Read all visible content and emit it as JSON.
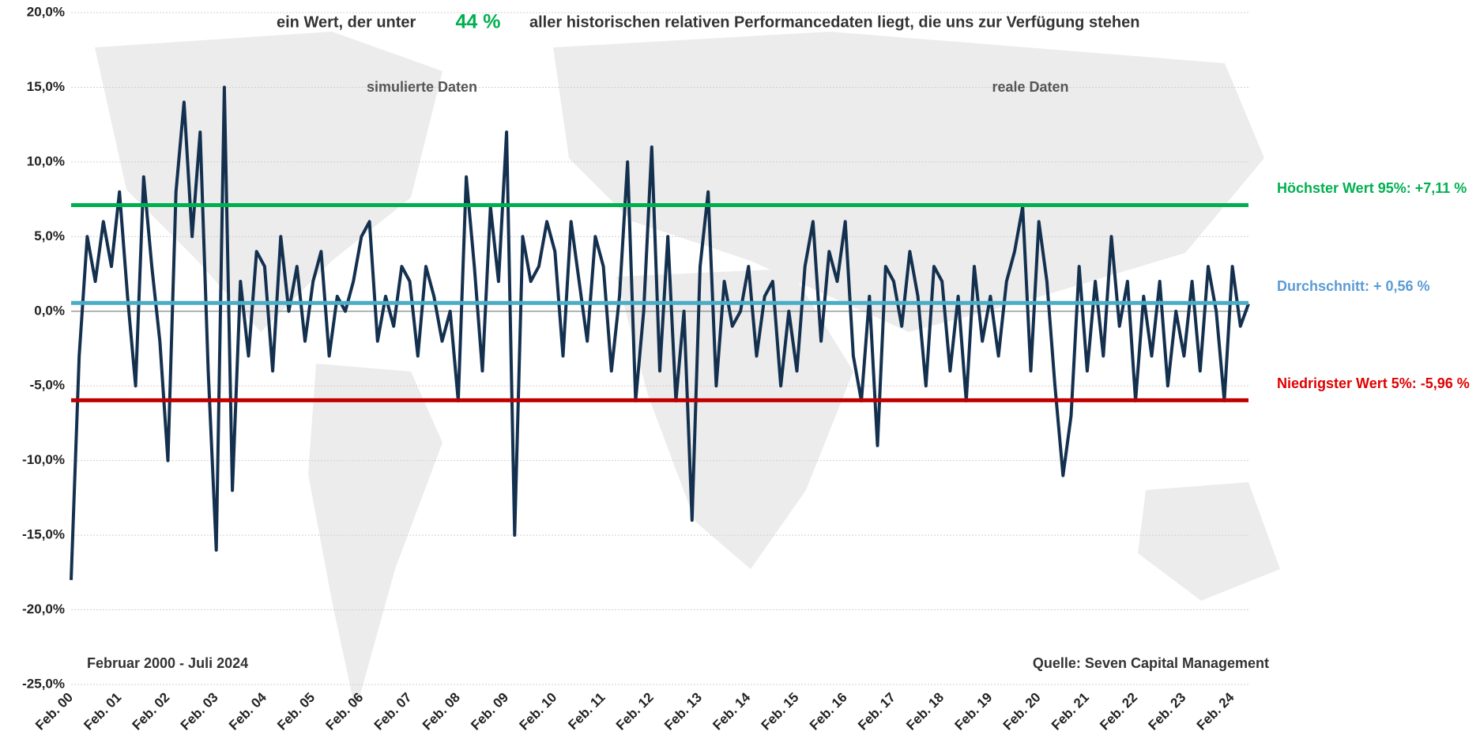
{
  "chart_data": {
    "type": "line",
    "title_parts": [
      "ein Wert, der unter",
      "44 %",
      "aller historischen relativen Performancedaten liegt, die uns zur Verfügung stehen"
    ],
    "annotations": [
      "simulierte Daten",
      "reale Daten",
      "Februar 2000 - Juli 2024",
      "Quelle: Seven Capital Management"
    ],
    "categories": [
      "Feb. 00",
      null,
      null,
      null,
      null,
      null,
      "Feb. 01",
      null,
      null,
      null,
      null,
      null,
      "Feb. 02",
      null,
      null,
      null,
      null,
      null,
      "Feb. 03",
      null,
      null,
      null,
      null,
      null,
      "Feb. 04",
      null,
      null,
      null,
      null,
      null,
      "Feb. 05",
      null,
      null,
      null,
      null,
      null,
      "Feb. 06",
      null,
      null,
      null,
      null,
      null,
      "Feb. 07",
      null,
      null,
      null,
      null,
      null,
      "Feb. 08",
      null,
      null,
      null,
      null,
      null,
      "Feb. 09",
      null,
      null,
      null,
      null,
      null,
      "Feb. 10",
      null,
      null,
      null,
      null,
      null,
      "Feb. 11",
      null,
      null,
      null,
      null,
      null,
      "Feb. 12",
      null,
      null,
      null,
      null,
      null,
      "Feb. 13",
      null,
      null,
      null,
      null,
      null,
      "Feb. 14",
      null,
      null,
      null,
      null,
      null,
      "Feb. 15",
      null,
      null,
      null,
      null,
      null,
      "Feb. 16",
      null,
      null,
      null,
      null,
      null,
      "Feb. 17",
      null,
      null,
      null,
      null,
      null,
      "Feb. 18",
      null,
      null,
      null,
      null,
      null,
      "Feb. 19",
      null,
      null,
      null,
      null,
      null,
      "Feb. 20",
      null,
      null,
      null,
      null,
      null,
      "Feb. 21",
      null,
      null,
      null,
      null,
      null,
      "Feb. 22",
      null,
      null,
      null,
      null,
      null,
      "Feb. 23",
      null,
      null,
      null,
      null,
      null,
      "Feb. 24",
      null,
      null
    ],
    "series": [
      {
        "color": "#14304f",
        "values": [
          -18,
          -3,
          5,
          2,
          6,
          3,
          8,
          1,
          -5,
          9,
          3,
          -2,
          -10,
          8,
          14,
          5,
          12,
          -4,
          -16,
          15,
          -12,
          2,
          -3,
          4,
          3,
          -4,
          5,
          0,
          3,
          -2,
          2,
          4,
          -3,
          1,
          0,
          2,
          5,
          6,
          -2,
          1,
          -1,
          3,
          2,
          -3,
          3,
          1,
          -2,
          0,
          -6,
          9,
          3,
          -4,
          7,
          2,
          12,
          -15,
          5,
          2,
          3,
          6,
          4,
          -3,
          6,
          2,
          -2,
          5,
          3,
          -4,
          1,
          10,
          -6,
          0,
          11,
          -4,
          5,
          -6,
          0,
          -14,
          3,
          8,
          -5,
          2,
          -1,
          0,
          3,
          -3,
          1,
          2,
          -5,
          0,
          -4,
          3,
          6,
          -2,
          4,
          2,
          6,
          -3,
          -6,
          1,
          -9,
          3,
          2,
          -1,
          4,
          1,
          -5,
          3,
          2,
          -4,
          1,
          -6,
          3,
          -2,
          1,
          -3,
          2,
          4,
          7,
          -4,
          6,
          2,
          -5,
          -11,
          -7,
          3,
          -4,
          2,
          -3,
          5,
          -1,
          2,
          -6,
          1,
          -3,
          2,
          -5,
          0,
          -3,
          2,
          -4,
          3,
          0,
          -6,
          3,
          -1,
          0.5
        ]
      }
    ],
    "reference_lines": [
      {
        "value": 7.11,
        "label": "Höchster Wert 95%: +7,11 %",
        "color": "#00b050"
      },
      {
        "value": 0.56,
        "label": "Durchschnitt: + 0,56 %",
        "color": "#4bacc6",
        "label_color": "#5b9bd5"
      },
      {
        "value": -5.96,
        "label": "Niedrigster Wert 5%: -5,96 %",
        "color": "#c00000",
        "label_color": "#e00000"
      }
    ],
    "ylim": [
      -25,
      20
    ],
    "yticks": [
      {
        "value": -25,
        "label": "-25,0%"
      },
      {
        "value": -20,
        "label": "-20,0%"
      },
      {
        "value": -15,
        "label": "-15,0%"
      },
      {
        "value": -10,
        "label": "-10,0%"
      },
      {
        "value": -5,
        "label": "-5,0%"
      },
      {
        "value": 0,
        "label": "0,0%"
      },
      {
        "value": 5,
        "label": "5,0%"
      },
      {
        "value": 10,
        "label": "10,0%"
      },
      {
        "value": 15,
        "label": "15,0%"
      },
      {
        "value": 20,
        "label": "20,0%"
      }
    ],
    "grid": true
  }
}
